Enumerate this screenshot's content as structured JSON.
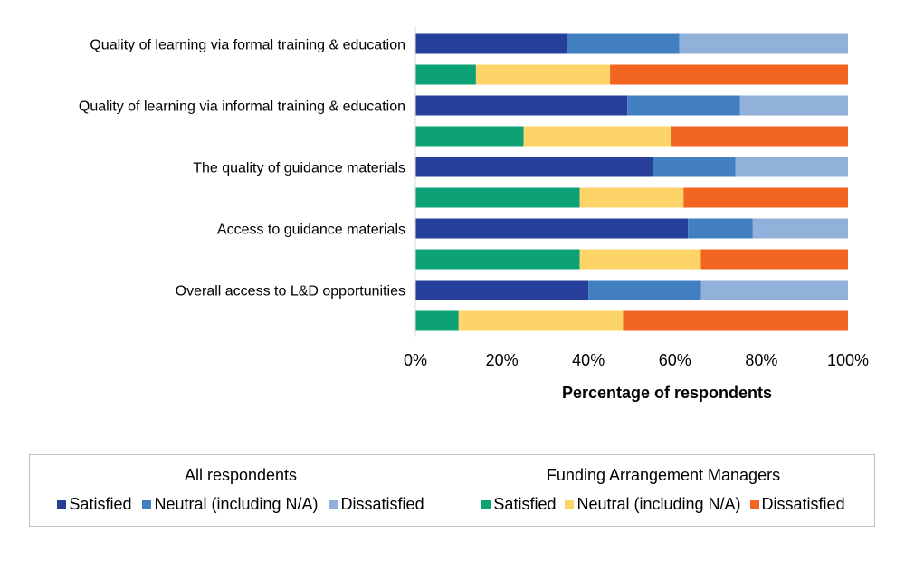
{
  "chart_data": {
    "type": "bar",
    "orientation": "horizontal",
    "stacked": "100%",
    "categories": [
      "Quality of learning via formal training & education",
      "Quality of learning via informal training & education",
      "The quality of guidance materials",
      "Access to guidance materials",
      "Overall access to L&D opportunities"
    ],
    "groups": [
      {
        "title": "All respondents",
        "series": [
          {
            "name": "Satisfied",
            "color": "#253f9a",
            "values": [
              35,
              49,
              55,
              63,
              40
            ]
          },
          {
            "name": "Neutral (including N/A)",
            "color": "#417fc1",
            "values": [
              26,
              26,
              19,
              15,
              26
            ]
          },
          {
            "name": "Dissatisfied",
            "color": "#92b1da",
            "values": [
              39,
              25,
              26,
              22,
              34
            ]
          }
        ]
      },
      {
        "title": "Funding Arrangement Managers",
        "series": [
          {
            "name": "Satisfied",
            "color": "#0ca275",
            "values": [
              14,
              25,
              38,
              38,
              10
            ]
          },
          {
            "name": "Neutral (including N/A)",
            "color": "#fdd468",
            "values": [
              31,
              34,
              24,
              28,
              38
            ]
          },
          {
            "name": "Dissatisfied",
            "color": "#f26622",
            "values": [
              55,
              41,
              38,
              34,
              52
            ]
          }
        ]
      }
    ],
    "xlabel": "Percentage of respondents",
    "xlim": [
      0,
      100
    ],
    "xticks": [
      "0%",
      "20%",
      "40%",
      "60%",
      "80%",
      "100%"
    ],
    "legend_position": "bottom",
    "grid": false
  }
}
